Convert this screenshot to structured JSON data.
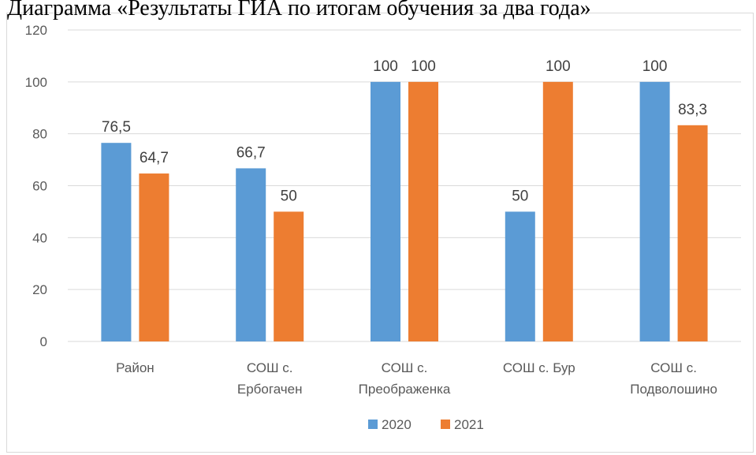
{
  "title_clipped": "Диаграмма «Результаты ГИА по итогам обучения за два года»",
  "chart_data": {
    "type": "bar",
    "categories": [
      "Район",
      "СОШ с. Ербогачен",
      "СОШ с. Преображенка",
      "СОШ с. Бур",
      "СОШ с. Подволошино"
    ],
    "category_lines": [
      [
        "Район"
      ],
      [
        "СОШ с.",
        "Ербогачен"
      ],
      [
        "СОШ с.",
        "Преображенка"
      ],
      [
        "СОШ с. Бур"
      ],
      [
        "СОШ с.",
        "Подволошино"
      ]
    ],
    "series": [
      {
        "name": "2020",
        "values": [
          76.5,
          66.7,
          100,
          50,
          100
        ],
        "labels": [
          "76,5",
          "66,7",
          "100",
          "50",
          "100"
        ],
        "color": "#5b9bd5"
      },
      {
        "name": "2021",
        "values": [
          64.7,
          50,
          100,
          100,
          83.3
        ],
        "labels": [
          "64,7",
          "50",
          "100",
          "100",
          "83,3"
        ],
        "color": "#ed7d31"
      }
    ],
    "ylim": [
      0,
      120
    ],
    "yticks": [
      "0",
      "20",
      "40",
      "60",
      "80",
      "100",
      "120"
    ],
    "ytick_values": [
      0,
      20,
      40,
      60,
      80,
      100,
      120
    ],
    "grid": true,
    "gridline_color": "#d9d9d9",
    "legend_position": "bottom"
  }
}
